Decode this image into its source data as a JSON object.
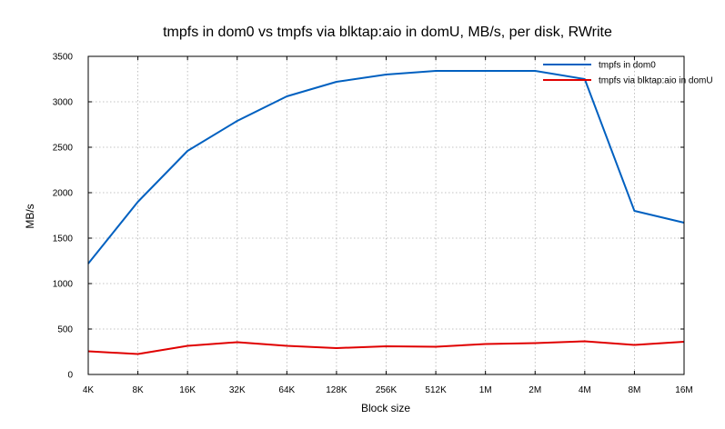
{
  "chart_data": {
    "type": "line",
    "title": "tmpfs in dom0 vs tmpfs via blktap:aio in domU, MB/s, per disk, RWrite",
    "xlabel": "Block size",
    "ylabel": "MB/s",
    "categories": [
      "4K",
      "8K",
      "16K",
      "32K",
      "64K",
      "128K",
      "256K",
      "512K",
      "1M",
      "2M",
      "4M",
      "8M",
      "16M"
    ],
    "ylim": [
      0,
      3500
    ],
    "yticks": [
      0,
      500,
      1000,
      1500,
      2000,
      2500,
      3000,
      3500
    ],
    "grid": true,
    "legend_position": "top-right",
    "series": [
      {
        "name": "tmpfs in dom0",
        "color": "#0060c0",
        "values": [
          1220,
          1900,
          2460,
          2790,
          3060,
          3220,
          3300,
          3340,
          3340,
          3340,
          3250,
          1800,
          1670
        ]
      },
      {
        "name": "tmpfs via blktap:aio in domU",
        "color": "#e00000",
        "values": [
          255,
          225,
          315,
          355,
          315,
          290,
          310,
          305,
          335,
          345,
          365,
          325,
          360
        ]
      }
    ]
  }
}
